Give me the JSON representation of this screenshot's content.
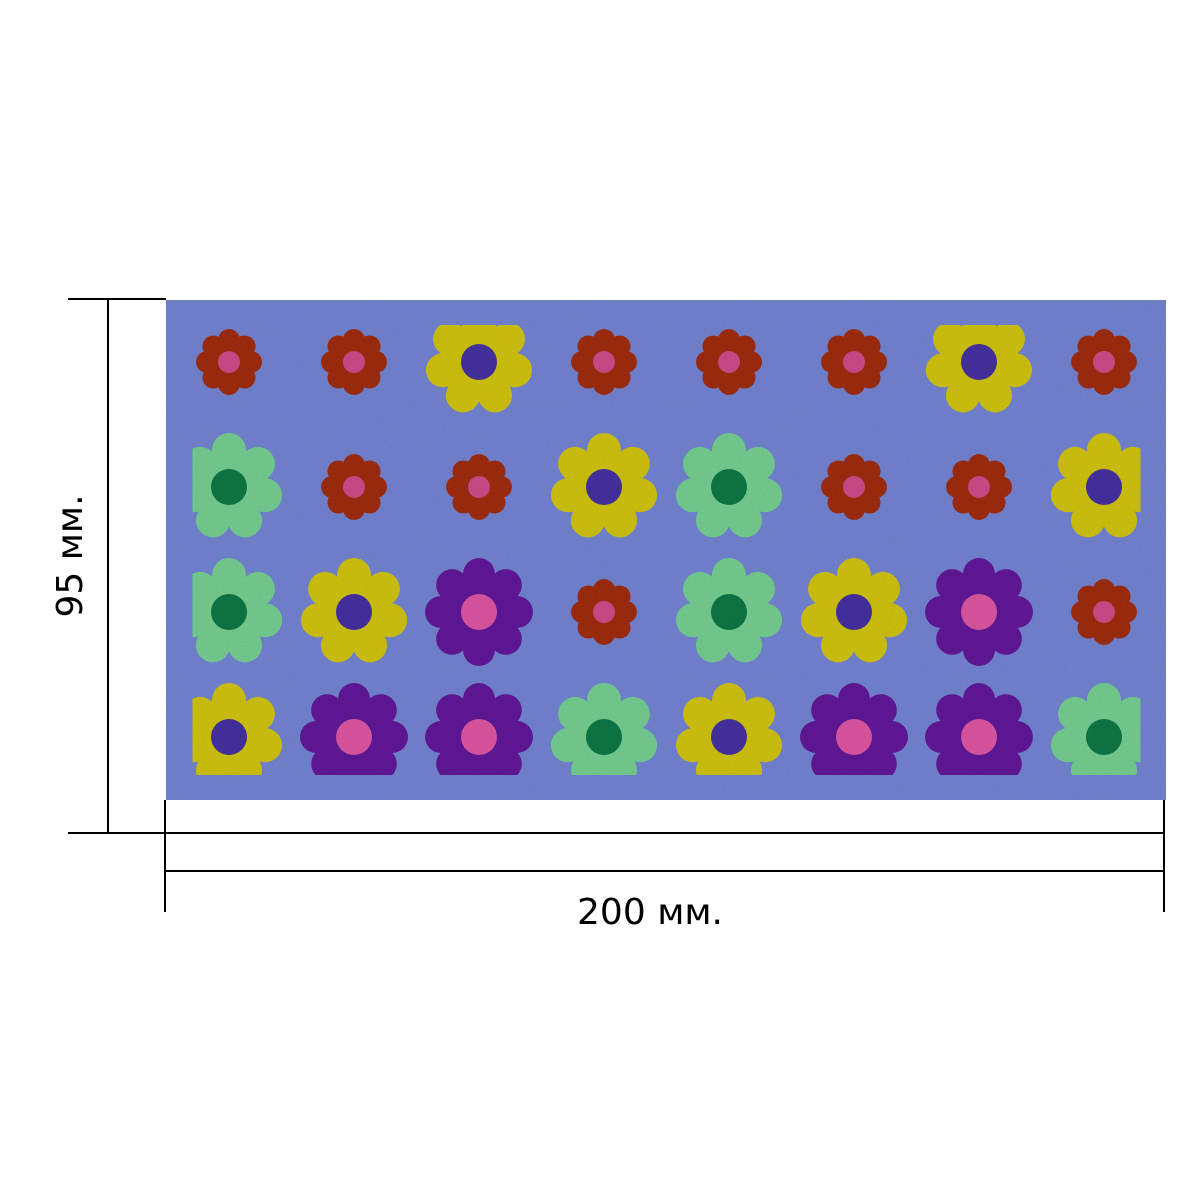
{
  "dimensions": {
    "height_label": "95 мм.",
    "width_label": "200 мм."
  },
  "panel": {
    "background": "#7080CC",
    "columns": 8,
    "rows": 4
  },
  "palette": {
    "red": {
      "petal": "#9B2A12",
      "center": "#C84A86"
    },
    "yellow": {
      "petal": "#CBBE12",
      "center": "#44309C"
    },
    "green": {
      "petal": "#72C98E",
      "center": "#0E7443"
    },
    "purple": {
      "petal": "#5E1694",
      "center": "#D8549E"
    }
  },
  "flower_grid": [
    [
      "red",
      "red",
      "yellow",
      "red",
      "red",
      "red",
      "yellow",
      "red"
    ],
    [
      "green",
      "red",
      "red",
      "yellow",
      "green",
      "red",
      "red",
      "yellow"
    ],
    [
      "green",
      "yellow",
      "purple",
      "red",
      "green",
      "yellow",
      "purple",
      "red"
    ],
    [
      "yellow",
      "purple",
      "purple",
      "green",
      "yellow",
      "purple",
      "purple",
      "green"
    ]
  ]
}
